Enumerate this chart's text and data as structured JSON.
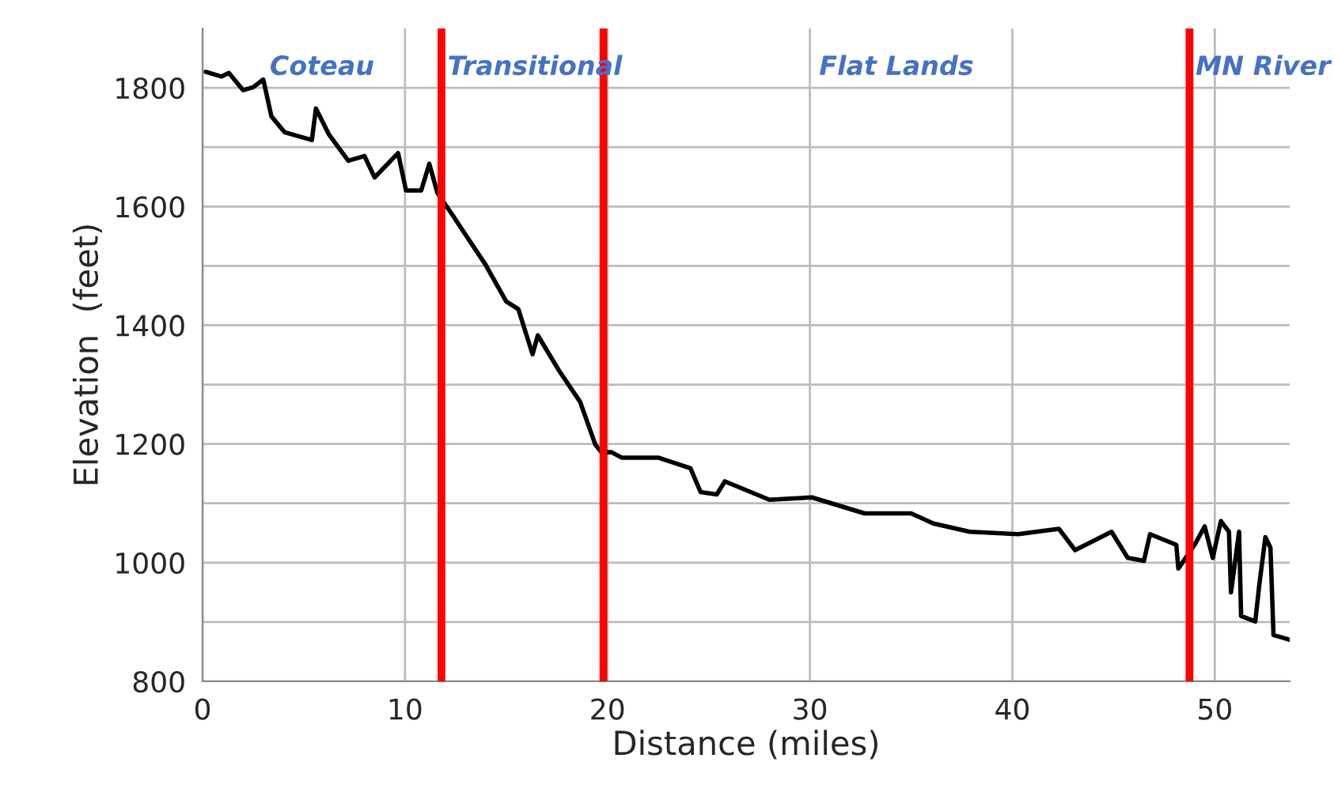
{
  "chart_data": {
    "type": "line",
    "xlabel": "Distance (miles)",
    "ylabel": "Elevation  (feet)",
    "xlim": [
      0,
      53.7
    ],
    "ylim": [
      800,
      1900
    ],
    "xticks": [
      0,
      10,
      20,
      30,
      40,
      50
    ],
    "yticks": [
      800,
      {
        "value": 900,
        "label": null
      },
      1000,
      {
        "value": 1100,
        "label": null
      },
      1200,
      {
        "value": 1300,
        "label": null
      },
      1400,
      {
        "value": 1500,
        "label": null
      },
      1600,
      {
        "value": 1700,
        "label": null
      },
      1800
    ],
    "grid": true,
    "marker": "none",
    "line_style": "solid",
    "series": [
      {
        "color": "#000000",
        "x": [
          0.16,
          0.94,
          1.3,
          2.0,
          2.5,
          3.0,
          3.4,
          4.06,
          5.4,
          5.6,
          6.25,
          7.2,
          8.0,
          8.5,
          9.66,
          10.05,
          10.8,
          11.2,
          11.6,
          12.4,
          12.9,
          13.96,
          15.0,
          15.6,
          16.3,
          16.56,
          17.6,
          18.65,
          19.4,
          19.7,
          20.2,
          20.7,
          22.5,
          24.1,
          24.6,
          25.4,
          25.8,
          28.0,
          30.1,
          32.7,
          35.0,
          36.1,
          37.9,
          40.3,
          42.3,
          43.1,
          44.9,
          45.7,
          46.5,
          46.8,
          48.1,
          48.2,
          49.0,
          49.5,
          49.9,
          50.3,
          50.7,
          50.8,
          51.2,
          51.3,
          52.0,
          52.2,
          52.5,
          52.75,
          52.9,
          53.7
        ],
        "values": [
          1827,
          1819,
          1825,
          1796,
          1801,
          1814,
          1752,
          1725,
          1712,
          1765,
          1721,
          1677,
          1685,
          1649,
          1690,
          1627,
          1627,
          1672,
          1623,
          1583,
          1557,
          1503,
          1440,
          1427,
          1351,
          1383,
          1324,
          1271,
          1199,
          1186,
          1186,
          1177,
          1177,
          1159,
          1119,
          1115,
          1137,
          1106,
          1110,
          1083,
          1083,
          1066,
          1052,
          1048,
          1057,
          1021,
          1052,
          1008,
          1003,
          1048,
          1030,
          990,
          1030,
          1061,
          1008,
          1070,
          1052,
          950,
          1052,
          910,
          901,
          963,
          1043,
          1025,
          878,
          870
        ]
      }
    ],
    "ref_lines": [
      {
        "axis": "x",
        "value": 11.8,
        "color": "#ff0000"
      },
      {
        "axis": "x",
        "value": 19.8,
        "color": "#ff0000"
      },
      {
        "axis": "x",
        "value": 48.75,
        "color": "#ff0000"
      }
    ],
    "annotations": [
      "Coteau",
      "Transitional",
      "Flat Lands",
      "MN River"
    ]
  }
}
